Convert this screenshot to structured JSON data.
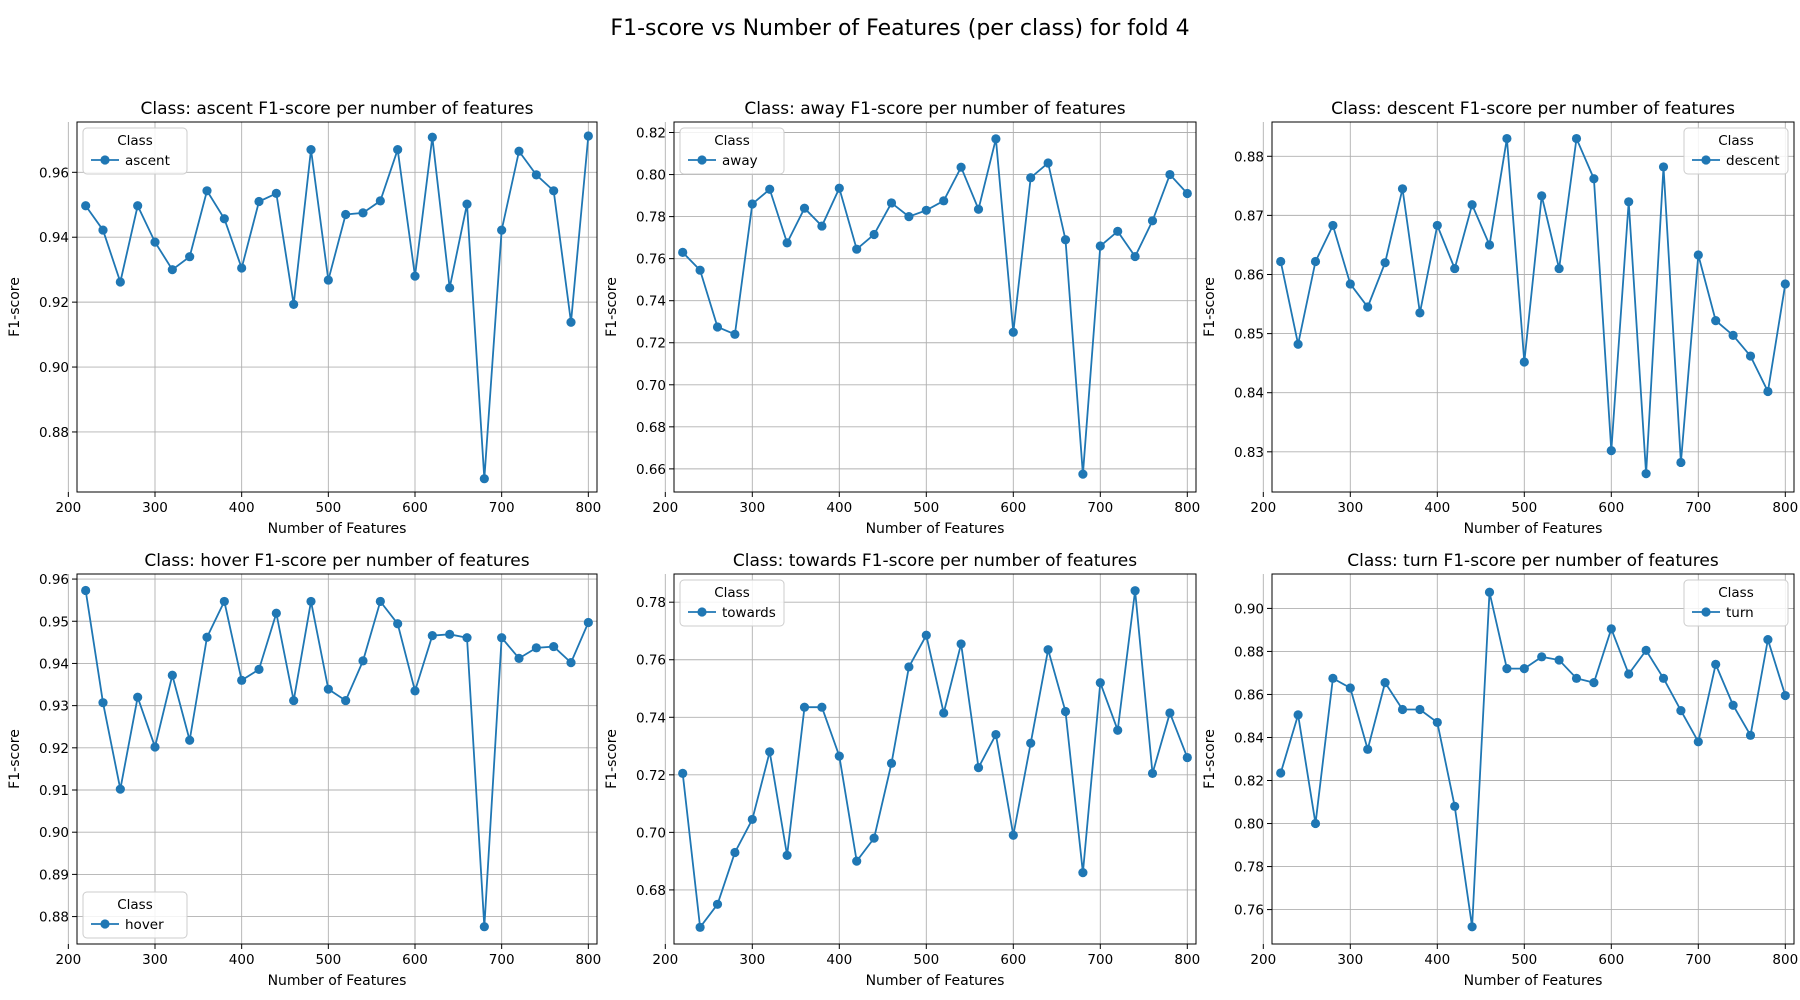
{
  "figure": {
    "title": "F1-score vs Number of Features (per class) for fold 4"
  },
  "colors": {
    "series": "#1f77b4",
    "grid": "#b0b0b0",
    "axis": "#000000",
    "legend_border": "#cccccc"
  },
  "chart_data": [
    {
      "type": "line",
      "title": "Class: ascent F1-score per number of features",
      "xlabel": "Number of Features",
      "ylabel": "F1-score",
      "xlim": [
        210,
        810
      ],
      "ylim": [
        0.8615,
        0.9755
      ],
      "xticks": [
        "200",
        "300",
        "400",
        "500",
        "600",
        "700",
        "800"
      ],
      "yticks": [
        "0.88",
        "0.90",
        "0.92",
        "0.94",
        "0.96"
      ],
      "grid": true,
      "legend": {
        "title": "Class",
        "placement": "upper left",
        "entries": [
          "ascent"
        ]
      },
      "x": [
        220,
        240,
        260,
        280,
        300,
        320,
        340,
        360,
        380,
        400,
        420,
        440,
        460,
        480,
        500,
        520,
        540,
        560,
        580,
        600,
        620,
        640,
        660,
        680,
        700,
        720,
        740,
        760,
        780,
        800
      ],
      "series": [
        {
          "name": "ascent",
          "values": [
            0.9497,
            0.9422,
            0.9262,
            0.9497,
            0.9385,
            0.93,
            0.934,
            0.9543,
            0.9457,
            0.9305,
            0.951,
            0.9535,
            0.9193,
            0.967,
            0.9268,
            0.947,
            0.9475,
            0.9512,
            0.967,
            0.928,
            0.9708,
            0.9244,
            0.9502,
            0.8656,
            0.9422,
            0.9665,
            0.9592,
            0.9543,
            0.9138,
            0.9712
          ]
        }
      ]
    },
    {
      "type": "line",
      "title": "Class: away F1-score per number of features",
      "xlabel": "Number of Features",
      "ylabel": "F1-score",
      "xlim": [
        210,
        810
      ],
      "ylim": [
        0.649,
        0.825
      ],
      "xticks": [
        "200",
        "300",
        "400",
        "500",
        "600",
        "700",
        "800"
      ],
      "yticks": [
        "0.66",
        "0.68",
        "0.70",
        "0.72",
        "0.74",
        "0.76",
        "0.78",
        "0.80",
        "0.82"
      ],
      "grid": true,
      "legend": {
        "title": "Class",
        "placement": "upper left",
        "entries": [
          "away"
        ]
      },
      "x": [
        220,
        240,
        260,
        280,
        300,
        320,
        340,
        360,
        380,
        400,
        420,
        440,
        460,
        480,
        500,
        520,
        540,
        560,
        580,
        600,
        620,
        640,
        660,
        680,
        700,
        720,
        740,
        760,
        780,
        800
      ],
      "series": [
        {
          "name": "away",
          "values": [
            0.763,
            0.7545,
            0.7275,
            0.724,
            0.786,
            0.793,
            0.7675,
            0.784,
            0.7755,
            0.7935,
            0.7645,
            0.7715,
            0.7865,
            0.78,
            0.783,
            0.7875,
            0.8035,
            0.7835,
            0.817,
            0.725,
            0.7985,
            0.8055,
            0.769,
            0.6575,
            0.766,
            0.773,
            0.761,
            0.778,
            0.8,
            0.791
          ]
        }
      ]
    },
    {
      "type": "line",
      "title": "Class: descent F1-score per number of features",
      "xlabel": "Number of Features",
      "ylabel": "F1-score",
      "xlim": [
        210,
        810
      ],
      "ylim": [
        0.8232,
        0.8858
      ],
      "xticks": [
        "200",
        "300",
        "400",
        "500",
        "600",
        "700",
        "800"
      ],
      "yticks": [
        "0.83",
        "0.84",
        "0.85",
        "0.86",
        "0.87",
        "0.88"
      ],
      "grid": true,
      "legend": {
        "title": "Class",
        "placement": "upper right",
        "entries": [
          "descent"
        ]
      },
      "x": [
        220,
        240,
        260,
        280,
        300,
        320,
        340,
        360,
        380,
        400,
        420,
        440,
        460,
        480,
        500,
        520,
        540,
        560,
        580,
        600,
        620,
        640,
        660,
        680,
        700,
        720,
        740,
        760,
        780,
        800
      ],
      "series": [
        {
          "name": "descent",
          "values": [
            0.8622,
            0.8482,
            0.8622,
            0.8683,
            0.8584,
            0.8545,
            0.862,
            0.8745,
            0.8535,
            0.8683,
            0.861,
            0.8718,
            0.865,
            0.883,
            0.8452,
            0.8733,
            0.861,
            0.883,
            0.8762,
            0.8302,
            0.8723,
            0.8263,
            0.8782,
            0.8282,
            0.8633,
            0.8522,
            0.8497,
            0.8462,
            0.8402,
            0.8584
          ]
        }
      ]
    },
    {
      "type": "line",
      "title": "Class: hover F1-score per number of features",
      "xlabel": "Number of Features",
      "ylabel": "F1-score",
      "xlim": [
        210,
        810
      ],
      "ylim": [
        0.8735,
        0.9612
      ],
      "xticks": [
        "200",
        "300",
        "400",
        "500",
        "600",
        "700",
        "800"
      ],
      "yticks": [
        "0.88",
        "0.89",
        "0.90",
        "0.91",
        "0.92",
        "0.93",
        "0.94",
        "0.95",
        "0.96"
      ],
      "grid": true,
      "legend": {
        "title": "Class",
        "placement": "lower left",
        "entries": [
          "hover"
        ]
      },
      "x": [
        220,
        240,
        260,
        280,
        300,
        320,
        340,
        360,
        380,
        400,
        420,
        440,
        460,
        480,
        500,
        520,
        540,
        560,
        580,
        600,
        620,
        640,
        660,
        680,
        700,
        720,
        740,
        760,
        780,
        800
      ],
      "series": [
        {
          "name": "hover",
          "values": [
            0.9573,
            0.9307,
            0.9102,
            0.932,
            0.9202,
            0.9372,
            0.9218,
            0.9462,
            0.9547,
            0.936,
            0.9386,
            0.9519,
            0.9312,
            0.9547,
            0.9339,
            0.9312,
            0.9406,
            0.9547,
            0.9494,
            0.9335,
            0.9466,
            0.9469,
            0.9461,
            0.8776,
            0.9461,
            0.9412,
            0.9437,
            0.944,
            0.9402,
            0.9497
          ]
        }
      ]
    },
    {
      "type": "line",
      "title": "Class: towards F1-score per number of features",
      "xlabel": "Number of Features",
      "ylabel": "F1-score",
      "xlim": [
        210,
        810
      ],
      "ylim": [
        0.6612,
        0.7898
      ],
      "xticks": [
        "200",
        "300",
        "400",
        "500",
        "600",
        "700",
        "800"
      ],
      "yticks": [
        "0.68",
        "0.70",
        "0.72",
        "0.74",
        "0.76",
        "0.78"
      ],
      "grid": true,
      "legend": {
        "title": "Class",
        "placement": "upper left",
        "entries": [
          "towards"
        ]
      },
      "x": [
        220,
        240,
        260,
        280,
        300,
        320,
        340,
        360,
        380,
        400,
        420,
        440,
        460,
        480,
        500,
        520,
        540,
        560,
        580,
        600,
        620,
        640,
        660,
        680,
        700,
        720,
        740,
        760,
        780,
        800
      ],
      "series": [
        {
          "name": "towards",
          "values": [
            0.7205,
            0.667,
            0.675,
            0.693,
            0.7045,
            0.728,
            0.692,
            0.7435,
            0.7435,
            0.7265,
            0.69,
            0.698,
            0.724,
            0.7575,
            0.7685,
            0.7415,
            0.7655,
            0.7225,
            0.734,
            0.699,
            0.731,
            0.7635,
            0.742,
            0.686,
            0.752,
            0.7355,
            0.784,
            0.7205,
            0.7415,
            0.726
          ]
        }
      ]
    },
    {
      "type": "line",
      "title": "Class: turn F1-score per number of features",
      "xlabel": "Number of Features",
      "ylabel": "F1-score",
      "xlim": [
        210,
        810
      ],
      "ylim": [
        0.744,
        0.916
      ],
      "xticks": [
        "200",
        "300",
        "400",
        "500",
        "600",
        "700",
        "800"
      ],
      "yticks": [
        "0.76",
        "0.78",
        "0.80",
        "0.82",
        "0.84",
        "0.86",
        "0.88",
        "0.90"
      ],
      "grid": true,
      "legend": {
        "title": "Class",
        "placement": "upper right",
        "entries": [
          "turn"
        ]
      },
      "x": [
        220,
        240,
        260,
        280,
        300,
        320,
        340,
        360,
        380,
        400,
        420,
        440,
        460,
        480,
        500,
        520,
        540,
        560,
        580,
        600,
        620,
        640,
        660,
        680,
        700,
        720,
        740,
        760,
        780,
        800
      ],
      "series": [
        {
          "name": "turn",
          "values": [
            0.8235,
            0.8505,
            0.8,
            0.8675,
            0.863,
            0.8345,
            0.8655,
            0.853,
            0.853,
            0.847,
            0.808,
            0.752,
            0.9075,
            0.872,
            0.872,
            0.8775,
            0.876,
            0.8675,
            0.8655,
            0.8905,
            0.8695,
            0.8805,
            0.8675,
            0.8525,
            0.838,
            0.874,
            0.855,
            0.841,
            0.8855,
            0.8595
          ]
        }
      ]
    }
  ]
}
